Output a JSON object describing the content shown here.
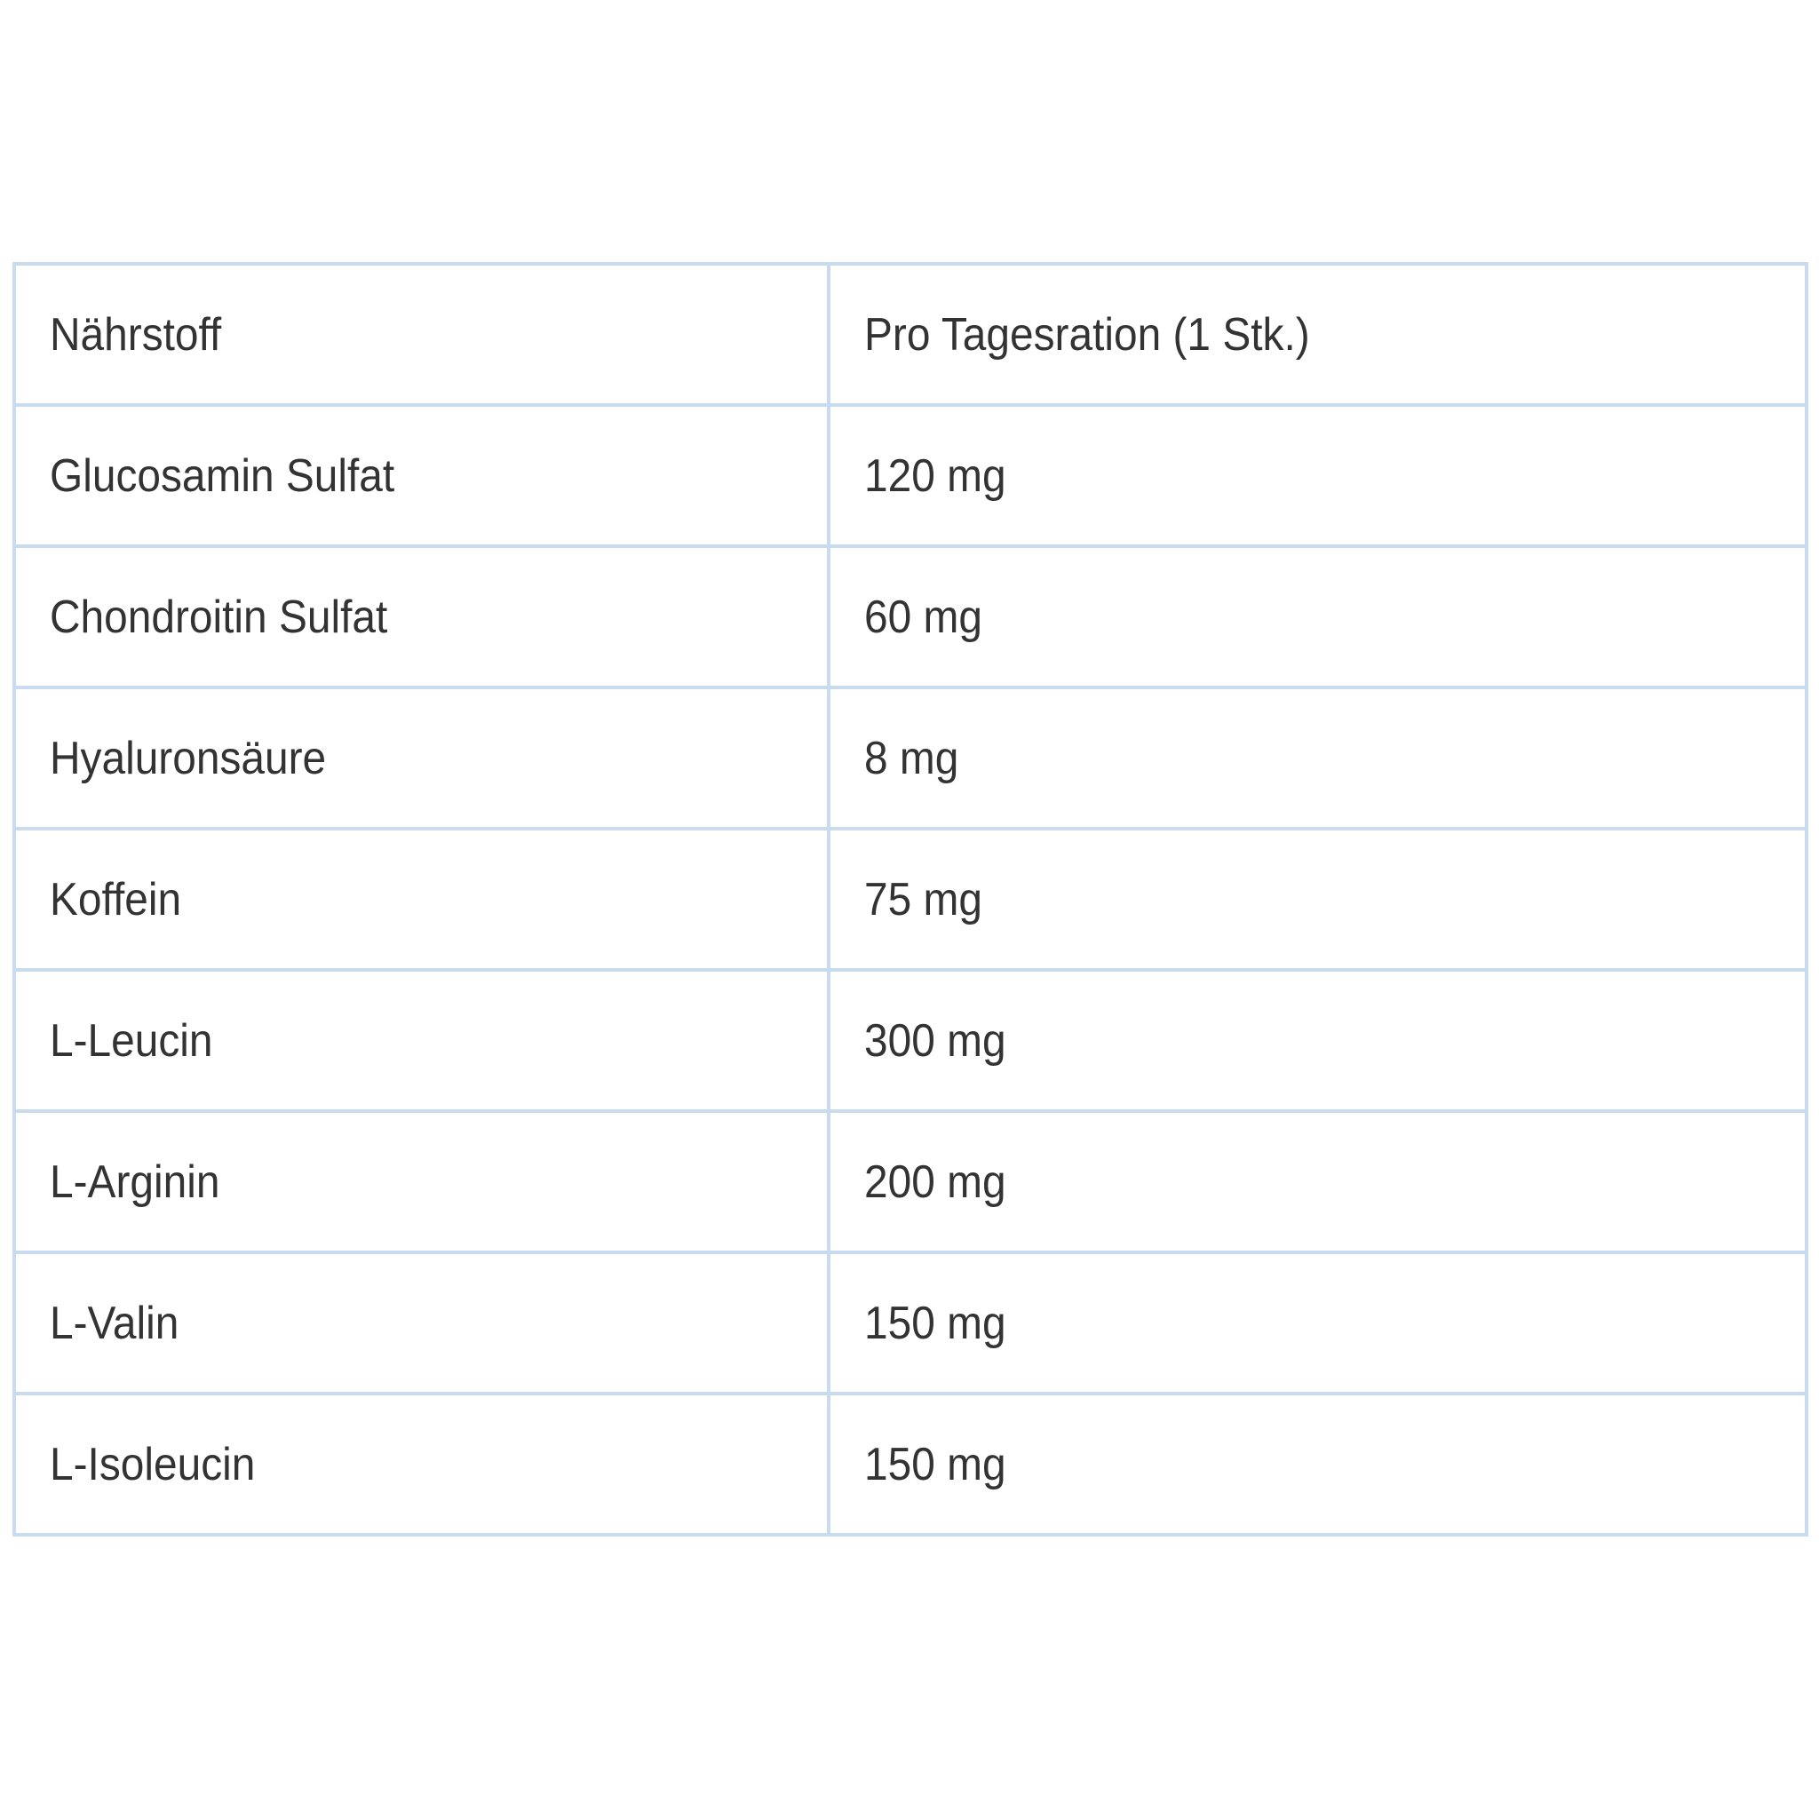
{
  "table": {
    "headers": [
      "Nährstoff",
      "Pro Tagesration (1 Stk.)"
    ],
    "rows": [
      [
        "Glucosamin Sulfat",
        "120 mg"
      ],
      [
        "Chondroitin Sulfat",
        "60 mg"
      ],
      [
        "Hyaluronsäure",
        "8 mg"
      ],
      [
        "Koffein",
        "75 mg"
      ],
      [
        "L-Leucin",
        "300 mg"
      ],
      [
        "L-Arginin",
        "200 mg"
      ],
      [
        "L-Valin",
        "150 mg"
      ],
      [
        "L-Isoleucin",
        "150 mg"
      ]
    ],
    "border_color": "#c9dcef"
  }
}
